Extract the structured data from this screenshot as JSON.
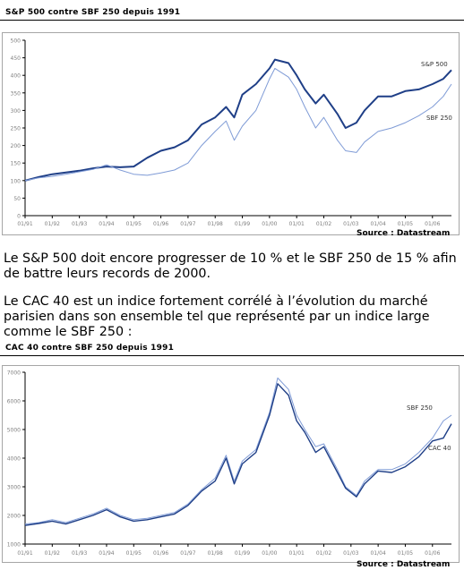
{
  "charts": [
    {
      "title": "S&P 500 contre SBF 250 depuis 1991",
      "source": "Source : Datastream"
    },
    {
      "title": "CAC 40 contre SBF 250 depuis 1991",
      "source": "Source : Datastream"
    }
  ],
  "text": {
    "paragraph1": "Le S&P 500 doit encore progresser de 10 % et le SBF 250 de 15 % afin de battre leurs records de 2000.",
    "paragraph2": "Le CAC 40 est un indice fortement corrélé à l’évolution du marché parisien dans son ensemble tel que représenté par un indice large comme le SBF 250 :"
  },
  "colors": {
    "dark_series": "#1f3f87",
    "light_series": "#7f9bd6",
    "frame": "#a6a6a6"
  },
  "chart_data": [
    {
      "type": "line",
      "title": "S&P 500 contre SBF 250 depuis 1991",
      "xlabel": "",
      "ylabel": "",
      "x_ticks": [
        "01/91",
        "01/92",
        "01/93",
        "01/94",
        "01/95",
        "01/96",
        "01/97",
        "01/98",
        "01/99",
        "01/00",
        "01/01",
        "01/02",
        "01/03",
        "01/04",
        "01/05",
        "01/06"
      ],
      "y_ticks": [
        0,
        50,
        100,
        150,
        200,
        250,
        300,
        350,
        400,
        450,
        500
      ],
      "xlim": [
        1991.0,
        2006.7
      ],
      "ylim": [
        0,
        500
      ],
      "grid": false,
      "series": [
        {
          "name": "S&P 500",
          "color": "#1f3f87",
          "width": 2.0,
          "x": [
            1991.0,
            1991.5,
            1992.0,
            1992.5,
            1993.0,
            1993.5,
            1994.0,
            1994.5,
            1995.0,
            1995.5,
            1996.0,
            1996.5,
            1997.0,
            1997.5,
            1998.0,
            1998.4,
            1998.7,
            1999.0,
            1999.5,
            2000.0,
            2000.2,
            2000.7,
            2001.0,
            2001.3,
            2001.7,
            2002.0,
            2002.5,
            2002.8,
            2003.2,
            2003.5,
            2004.0,
            2004.5,
            2005.0,
            2005.5,
            2006.0,
            2006.4,
            2006.7
          ],
          "y": [
            100,
            110,
            118,
            123,
            128,
            135,
            140,
            138,
            140,
            165,
            185,
            195,
            215,
            260,
            280,
            310,
            280,
            345,
            375,
            420,
            445,
            435,
            400,
            360,
            320,
            345,
            290,
            250,
            265,
            300,
            340,
            340,
            355,
            360,
            375,
            390,
            415
          ]
        },
        {
          "name": "SBF 250",
          "color": "#7f9bd6",
          "width": 1.0,
          "x": [
            1991.0,
            1991.5,
            1992.0,
            1992.5,
            1993.0,
            1993.5,
            1994.0,
            1994.5,
            1995.0,
            1995.5,
            1996.0,
            1996.5,
            1997.0,
            1997.5,
            1998.0,
            1998.4,
            1998.7,
            1999.0,
            1999.5,
            2000.0,
            2000.2,
            2000.7,
            2001.0,
            2001.3,
            2001.7,
            2002.0,
            2002.5,
            2002.8,
            2003.2,
            2003.5,
            2004.0,
            2004.5,
            2005.0,
            2005.5,
            2006.0,
            2006.4,
            2006.7
          ],
          "y": [
            100,
            108,
            112,
            118,
            125,
            132,
            145,
            130,
            118,
            115,
            122,
            130,
            150,
            200,
            240,
            270,
            215,
            255,
            300,
            390,
            420,
            395,
            360,
            310,
            250,
            280,
            215,
            185,
            180,
            210,
            240,
            250,
            265,
            285,
            310,
            340,
            375
          ]
        }
      ],
      "annotations": [
        "S&P 500",
        "SBF 250"
      ]
    },
    {
      "type": "line",
      "title": "CAC 40 contre SBF 250 depuis 1991",
      "xlabel": "",
      "ylabel": "",
      "x_ticks": [
        "01/91",
        "01/92",
        "01/93",
        "01/94",
        "01/95",
        "01/96",
        "01/97",
        "01/98",
        "01/99",
        "01/00",
        "01/01",
        "01/02",
        "01/03",
        "01/04",
        "01/05",
        "01/06"
      ],
      "y_ticks": [
        1000,
        2000,
        3000,
        4000,
        5000,
        6000,
        7000
      ],
      "xlim": [
        1991.0,
        2006.7
      ],
      "ylim": [
        1000,
        7000
      ],
      "grid": false,
      "series": [
        {
          "name": "SBF 250",
          "color": "#7f9bd6",
          "width": 1.0,
          "x": [
            1991.0,
            1991.5,
            1992.0,
            1992.5,
            1993.0,
            1993.5,
            1994.0,
            1994.5,
            1995.0,
            1995.5,
            1996.0,
            1996.5,
            1997.0,
            1997.5,
            1998.0,
            1998.4,
            1998.7,
            1999.0,
            1999.5,
            2000.0,
            2000.3,
            2000.7,
            2001.0,
            2001.3,
            2001.7,
            2002.0,
            2002.5,
            2002.8,
            2003.2,
            2003.5,
            2004.0,
            2004.5,
            2005.0,
            2005.5,
            2006.0,
            2006.4,
            2006.7
          ],
          "y": [
            1700,
            1750,
            1850,
            1750,
            1900,
            2050,
            2250,
            2000,
            1850,
            1900,
            2000,
            2100,
            2400,
            2900,
            3300,
            4100,
            3200,
            3900,
            4300,
            5600,
            6800,
            6400,
            5500,
            5000,
            4400,
            4500,
            3600,
            3000,
            2700,
            3200,
            3600,
            3600,
            3800,
            4200,
            4700,
            5300,
            5500
          ]
        },
        {
          "name": "CAC 40",
          "color": "#1f3f87",
          "width": 1.4,
          "x": [
            1991.0,
            1991.5,
            1992.0,
            1992.5,
            1993.0,
            1993.5,
            1994.0,
            1994.5,
            1995.0,
            1995.5,
            1996.0,
            1996.5,
            1997.0,
            1997.5,
            1998.0,
            1998.4,
            1998.7,
            1999.0,
            1999.5,
            2000.0,
            2000.3,
            2000.7,
            2001.0,
            2001.3,
            2001.7,
            2002.0,
            2002.5,
            2002.8,
            2003.2,
            2003.5,
            2004.0,
            2004.5,
            2005.0,
            2005.5,
            2006.0,
            2006.4,
            2006.7
          ],
          "y": [
            1650,
            1720,
            1800,
            1700,
            1850,
            2000,
            2200,
            1950,
            1800,
            1850,
            1950,
            2050,
            2350,
            2850,
            3200,
            4000,
            3100,
            3800,
            4200,
            5500,
            6600,
            6200,
            5300,
            4900,
            4200,
            4400,
            3500,
            2950,
            2650,
            3100,
            3550,
            3500,
            3700,
            4050,
            4600,
            4700,
            5200
          ]
        }
      ],
      "annotations": [
        "SBF 250",
        "CAC 40"
      ]
    }
  ]
}
